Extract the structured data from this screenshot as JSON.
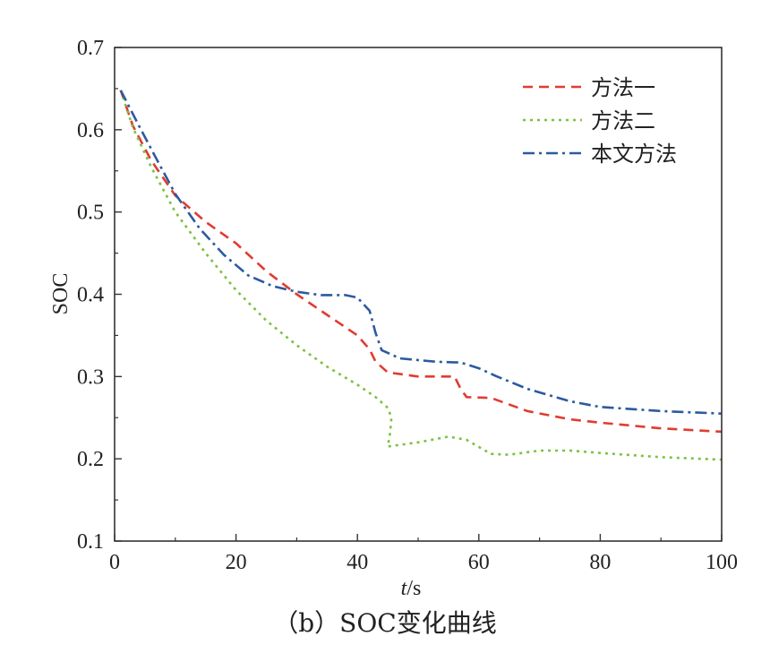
{
  "chart_data": {
    "type": "line",
    "caption": "（b）SOC变化曲线",
    "xlabel_var": "t",
    "xlabel_unit": "/s",
    "ylabel": "SOC",
    "xlim": [
      0,
      100
    ],
    "ylim": [
      0.1,
      0.7
    ],
    "x_ticks": [
      "0",
      "20",
      "40",
      "60",
      "80",
      "100"
    ],
    "y_ticks": [
      "0.1",
      "0.2",
      "0.3",
      "0.4",
      "0.5",
      "0.6",
      "0.7"
    ],
    "grid": false,
    "legend_position": "top-right",
    "series": [
      {
        "name": "方法一",
        "color": "#e03c31",
        "style": "dashed",
        "points": [
          [
            1,
            0.648
          ],
          [
            3,
            0.605
          ],
          [
            6,
            0.563
          ],
          [
            10,
            0.52
          ],
          [
            15,
            0.488
          ],
          [
            20,
            0.462
          ],
          [
            25,
            0.428
          ],
          [
            30,
            0.4
          ],
          [
            35,
            0.375
          ],
          [
            40,
            0.35
          ],
          [
            42,
            0.333
          ],
          [
            43,
            0.318
          ],
          [
            45,
            0.305
          ],
          [
            50,
            0.3
          ],
          [
            56,
            0.3
          ],
          [
            57,
            0.285
          ],
          [
            58,
            0.275
          ],
          [
            62,
            0.274
          ],
          [
            68,
            0.258
          ],
          [
            75,
            0.248
          ],
          [
            80,
            0.244
          ],
          [
            90,
            0.237
          ],
          [
            100,
            0.233
          ]
        ]
      },
      {
        "name": "方法二",
        "color": "#7cc241",
        "style": "dotted",
        "points": [
          [
            1,
            0.648
          ],
          [
            3,
            0.603
          ],
          [
            6,
            0.555
          ],
          [
            10,
            0.5
          ],
          [
            15,
            0.45
          ],
          [
            20,
            0.405
          ],
          [
            25,
            0.368
          ],
          [
            30,
            0.338
          ],
          [
            35,
            0.312
          ],
          [
            40,
            0.29
          ],
          [
            43,
            0.275
          ],
          [
            45,
            0.262
          ],
          [
            45.6,
            0.25
          ],
          [
            45.4,
            0.232
          ],
          [
            45,
            0.215
          ],
          [
            50,
            0.22
          ],
          [
            55,
            0.227
          ],
          [
            58,
            0.223
          ],
          [
            62,
            0.206
          ],
          [
            65,
            0.205
          ],
          [
            70,
            0.21
          ],
          [
            75,
            0.21
          ],
          [
            80,
            0.207
          ],
          [
            90,
            0.202
          ],
          [
            100,
            0.199
          ]
        ]
      },
      {
        "name": "本文方法",
        "color": "#2c5aa0",
        "style": "dashdot",
        "points": [
          [
            1,
            0.648
          ],
          [
            4,
            0.605
          ],
          [
            7,
            0.563
          ],
          [
            10,
            0.522
          ],
          [
            14,
            0.48
          ],
          [
            18,
            0.448
          ],
          [
            22,
            0.423
          ],
          [
            26,
            0.41
          ],
          [
            30,
            0.403
          ],
          [
            34,
            0.399
          ],
          [
            38,
            0.399
          ],
          [
            40,
            0.396
          ],
          [
            42,
            0.38
          ],
          [
            43,
            0.353
          ],
          [
            44,
            0.332
          ],
          [
            47,
            0.322
          ],
          [
            53,
            0.318
          ],
          [
            57,
            0.317
          ],
          [
            60,
            0.31
          ],
          [
            63,
            0.3
          ],
          [
            68,
            0.285
          ],
          [
            75,
            0.27
          ],
          [
            80,
            0.263
          ],
          [
            90,
            0.258
          ],
          [
            100,
            0.255
          ]
        ]
      }
    ]
  }
}
